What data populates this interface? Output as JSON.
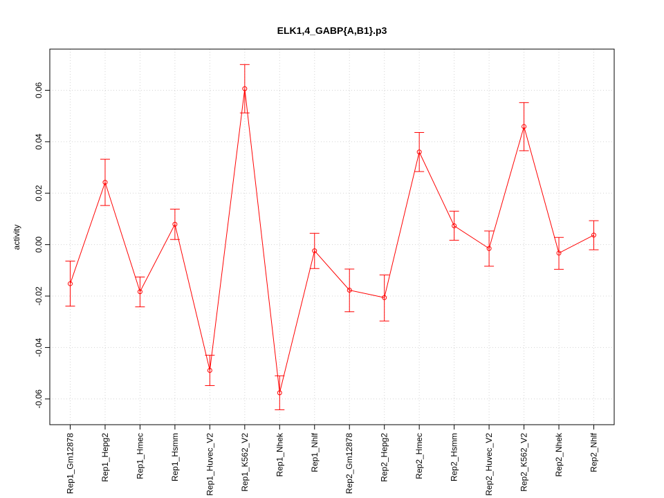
{
  "chart_data": {
    "type": "line",
    "title": "ELK1,4_GABP{A,B1}.p3",
    "xlabel": "",
    "ylabel": "activity",
    "ylim": [
      -0.07,
      0.076
    ],
    "yticks": [
      -0.06,
      -0.04,
      -0.02,
      0.0,
      0.02,
      0.04,
      0.06
    ],
    "ytick_labels": [
      "-0.06",
      "-0.04",
      "-0.02",
      "0.00",
      "0.02",
      "0.04",
      "0.06"
    ],
    "grid": true,
    "color": "#ff0000",
    "categories": [
      "Rep1_Gm12878",
      "Rep1_Hepg2",
      "Rep1_Hmec",
      "Rep1_Hsmm",
      "Rep1_Huvec_V2",
      "Rep1_K562_V2",
      "Rep1_Nhek",
      "Rep1_Nhlf",
      "Rep2_Gm12878",
      "Rep2_Hepg2",
      "Rep2_Hmec",
      "Rep2_Hsmm",
      "Rep2_Huvec_V2",
      "Rep2_K562_V2",
      "Rep2_Nhek",
      "Rep2_Nhlf"
    ],
    "values": [
      -0.0152,
      0.0242,
      -0.0183,
      0.0079,
      -0.0489,
      0.0606,
      -0.0576,
      -0.0024,
      -0.0177,
      -0.0206,
      0.036,
      0.0073,
      -0.0015,
      0.0459,
      -0.0033,
      0.0037
    ],
    "err_low": [
      -0.0239,
      0.0152,
      -0.0242,
      0.002,
      -0.0548,
      0.0512,
      -0.0642,
      -0.0093,
      -0.0261,
      -0.0297,
      0.0284,
      0.0017,
      -0.0084,
      0.0365,
      -0.0096,
      -0.002
    ],
    "err_high": [
      -0.0064,
      0.0332,
      -0.0126,
      0.0138,
      -0.043,
      0.07,
      -0.051,
      0.0044,
      -0.0095,
      -0.0118,
      0.0436,
      0.013,
      0.0053,
      0.0552,
      0.0028,
      0.0093
    ]
  }
}
